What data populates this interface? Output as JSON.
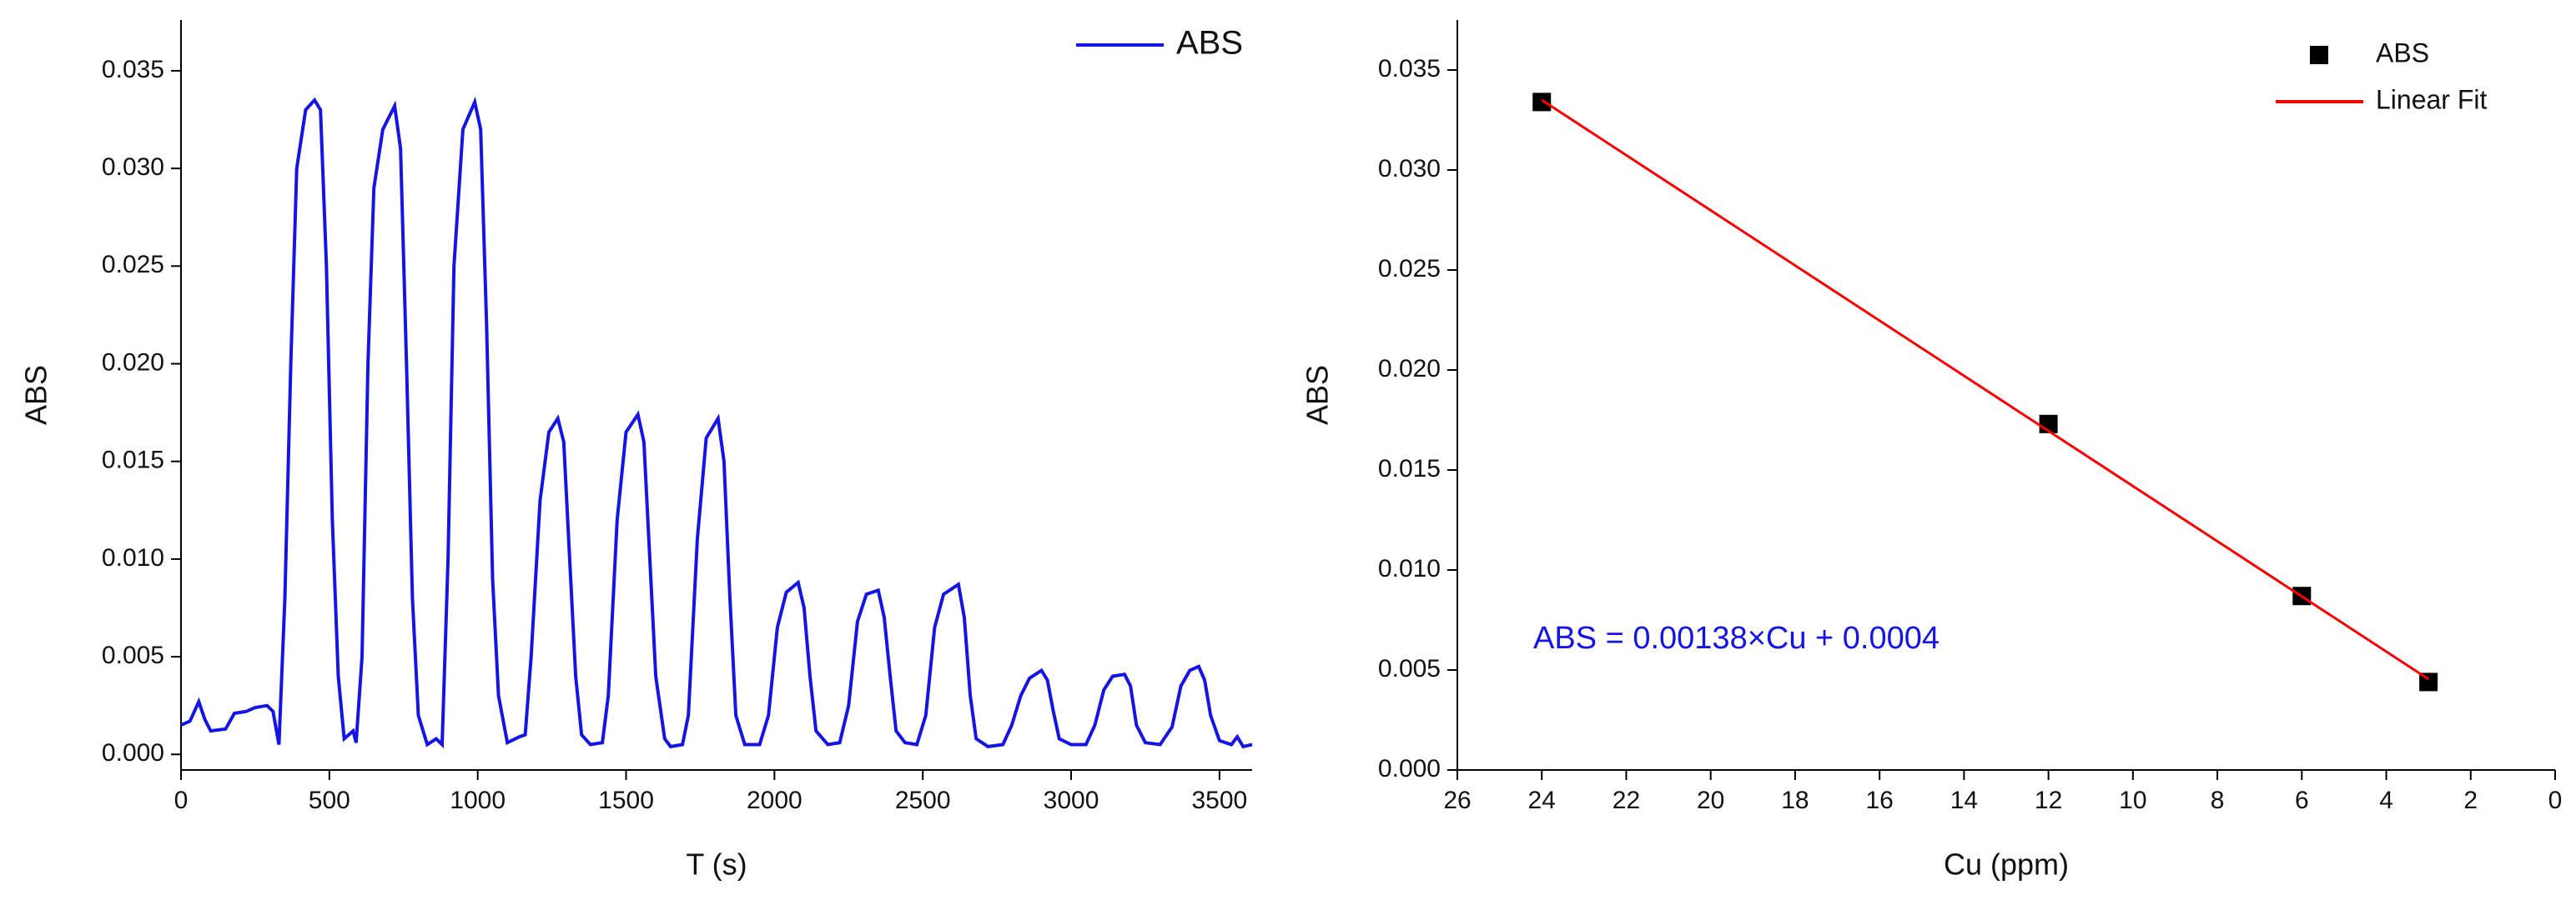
{
  "chart_data": [
    {
      "type": "line",
      "x_label": "T (s)",
      "y_label": "ABS",
      "xlim": [
        0,
        3610
      ],
      "ylim": [
        -0.0008,
        0.0376
      ],
      "xticks": [
        0,
        500,
        1000,
        1500,
        2000,
        2500,
        3000,
        3500
      ],
      "yticks": [
        {
          "value": 0,
          "label": "0.000"
        },
        0.005,
        {
          "value": 0.01,
          "label": "0.010"
        },
        0.015,
        {
          "value": 0.02,
          "label": "0.020"
        },
        0.025,
        {
          "value": 0.03,
          "label": "0.030"
        },
        0.035
      ],
      "legend": "top-right",
      "series": [
        {
          "name": "ABS",
          "color": "#1414e6",
          "x": [
            0,
            30,
            60,
            80,
            100,
            150,
            180,
            220,
            250,
            290,
            310,
            330,
            350,
            370,
            390,
            420,
            450,
            470,
            490,
            510,
            530,
            550,
            580,
            590,
            610,
            630,
            650,
            680,
            720,
            740,
            760,
            780,
            800,
            830,
            860,
            880,
            900,
            920,
            950,
            990,
            1010,
            1030,
            1050,
            1070,
            1100,
            1140,
            1160,
            1180,
            1210,
            1240,
            1270,
            1290,
            1310,
            1330,
            1350,
            1380,
            1420,
            1440,
            1470,
            1500,
            1540,
            1560,
            1580,
            1600,
            1630,
            1650,
            1690,
            1710,
            1740,
            1770,
            1810,
            1830,
            1850,
            1870,
            1900,
            1950,
            1980,
            2010,
            2040,
            2080,
            2100,
            2120,
            2140,
            2180,
            2220,
            2250,
            2280,
            2310,
            2350,
            2370,
            2390,
            2410,
            2440,
            2480,
            2510,
            2540,
            2570,
            2620,
            2640,
            2660,
            2680,
            2720,
            2770,
            2800,
            2830,
            2860,
            2900,
            2920,
            2940,
            2960,
            3000,
            3050,
            3080,
            3110,
            3140,
            3180,
            3200,
            3220,
            3250,
            3300,
            3340,
            3370,
            3400,
            3430,
            3450,
            3470,
            3500,
            3540,
            3560,
            3580,
            3610
          ],
          "values": [
            0.0015,
            0.0017,
            0.0027,
            0.0018,
            0.0012,
            0.0013,
            0.0021,
            0.0022,
            0.0024,
            0.0025,
            0.0022,
            0.0005,
            0.008,
            0.02,
            0.03,
            0.033,
            0.0335,
            0.033,
            0.025,
            0.012,
            0.004,
            0.0008,
            0.0012,
            0.0006,
            0.005,
            0.02,
            0.029,
            0.032,
            0.0332,
            0.031,
            0.02,
            0.008,
            0.002,
            0.0005,
            0.0008,
            0.0005,
            0.01,
            0.025,
            0.032,
            0.0334,
            0.032,
            0.022,
            0.009,
            0.003,
            0.0006,
            0.0009,
            0.001,
            0.005,
            0.013,
            0.0165,
            0.0172,
            0.016,
            0.01,
            0.004,
            0.001,
            0.0005,
            0.0006,
            0.003,
            0.012,
            0.0165,
            0.0174,
            0.016,
            0.01,
            0.004,
            0.0008,
            0.0004,
            0.0005,
            0.002,
            0.011,
            0.0162,
            0.0172,
            0.015,
            0.008,
            0.002,
            0.0005,
            0.0005,
            0.002,
            0.0065,
            0.0083,
            0.0088,
            0.0075,
            0.004,
            0.0012,
            0.0005,
            0.0006,
            0.0025,
            0.0068,
            0.0082,
            0.0084,
            0.007,
            0.004,
            0.0012,
            0.0006,
            0.0005,
            0.002,
            0.0065,
            0.0082,
            0.0087,
            0.007,
            0.003,
            0.0008,
            0.0004,
            0.0005,
            0.0015,
            0.003,
            0.0039,
            0.0043,
            0.0038,
            0.0022,
            0.0008,
            0.0005,
            0.0005,
            0.0015,
            0.0033,
            0.004,
            0.0041,
            0.0035,
            0.0015,
            0.0006,
            0.0005,
            0.0014,
            0.0035,
            0.0043,
            0.0045,
            0.0038,
            0.002,
            0.0007,
            0.0005,
            0.0009,
            0.0004,
            0.0005
          ]
        }
      ]
    },
    {
      "type": "scatter",
      "x_label": "Cu (ppm)",
      "y_label": "ABS",
      "xlim": [
        26,
        0
      ],
      "ylim": [
        0,
        0.0375
      ],
      "xticks": [
        26,
        24,
        22,
        20,
        18,
        16,
        14,
        12,
        10,
        8,
        6,
        4,
        2,
        0
      ],
      "yticks": [
        {
          "value": 0,
          "label": "0.000"
        },
        0.005,
        {
          "value": 0.01,
          "label": "0.010"
        },
        0.015,
        {
          "value": 0.02,
          "label": "0.020"
        },
        0.025,
        {
          "value": 0.03,
          "label": "0.030"
        },
        0.035
      ],
      "legend": "top-right",
      "annotation": "ABS = 0.00138×Cu + 0.0004",
      "annotation_color": "#1414e6",
      "series": [
        {
          "name": "ABS",
          "color": "#000000",
          "marker": "square",
          "x": [
            24,
            12,
            6,
            3
          ],
          "values": [
            0.0334,
            0.0173,
            0.0087,
            0.0044
          ]
        },
        {
          "name": "Linear Fit",
          "color": "#ff0000",
          "marker": "line",
          "x": [
            24,
            3
          ],
          "values": [
            0.0335,
            0.00454
          ]
        }
      ]
    }
  ]
}
